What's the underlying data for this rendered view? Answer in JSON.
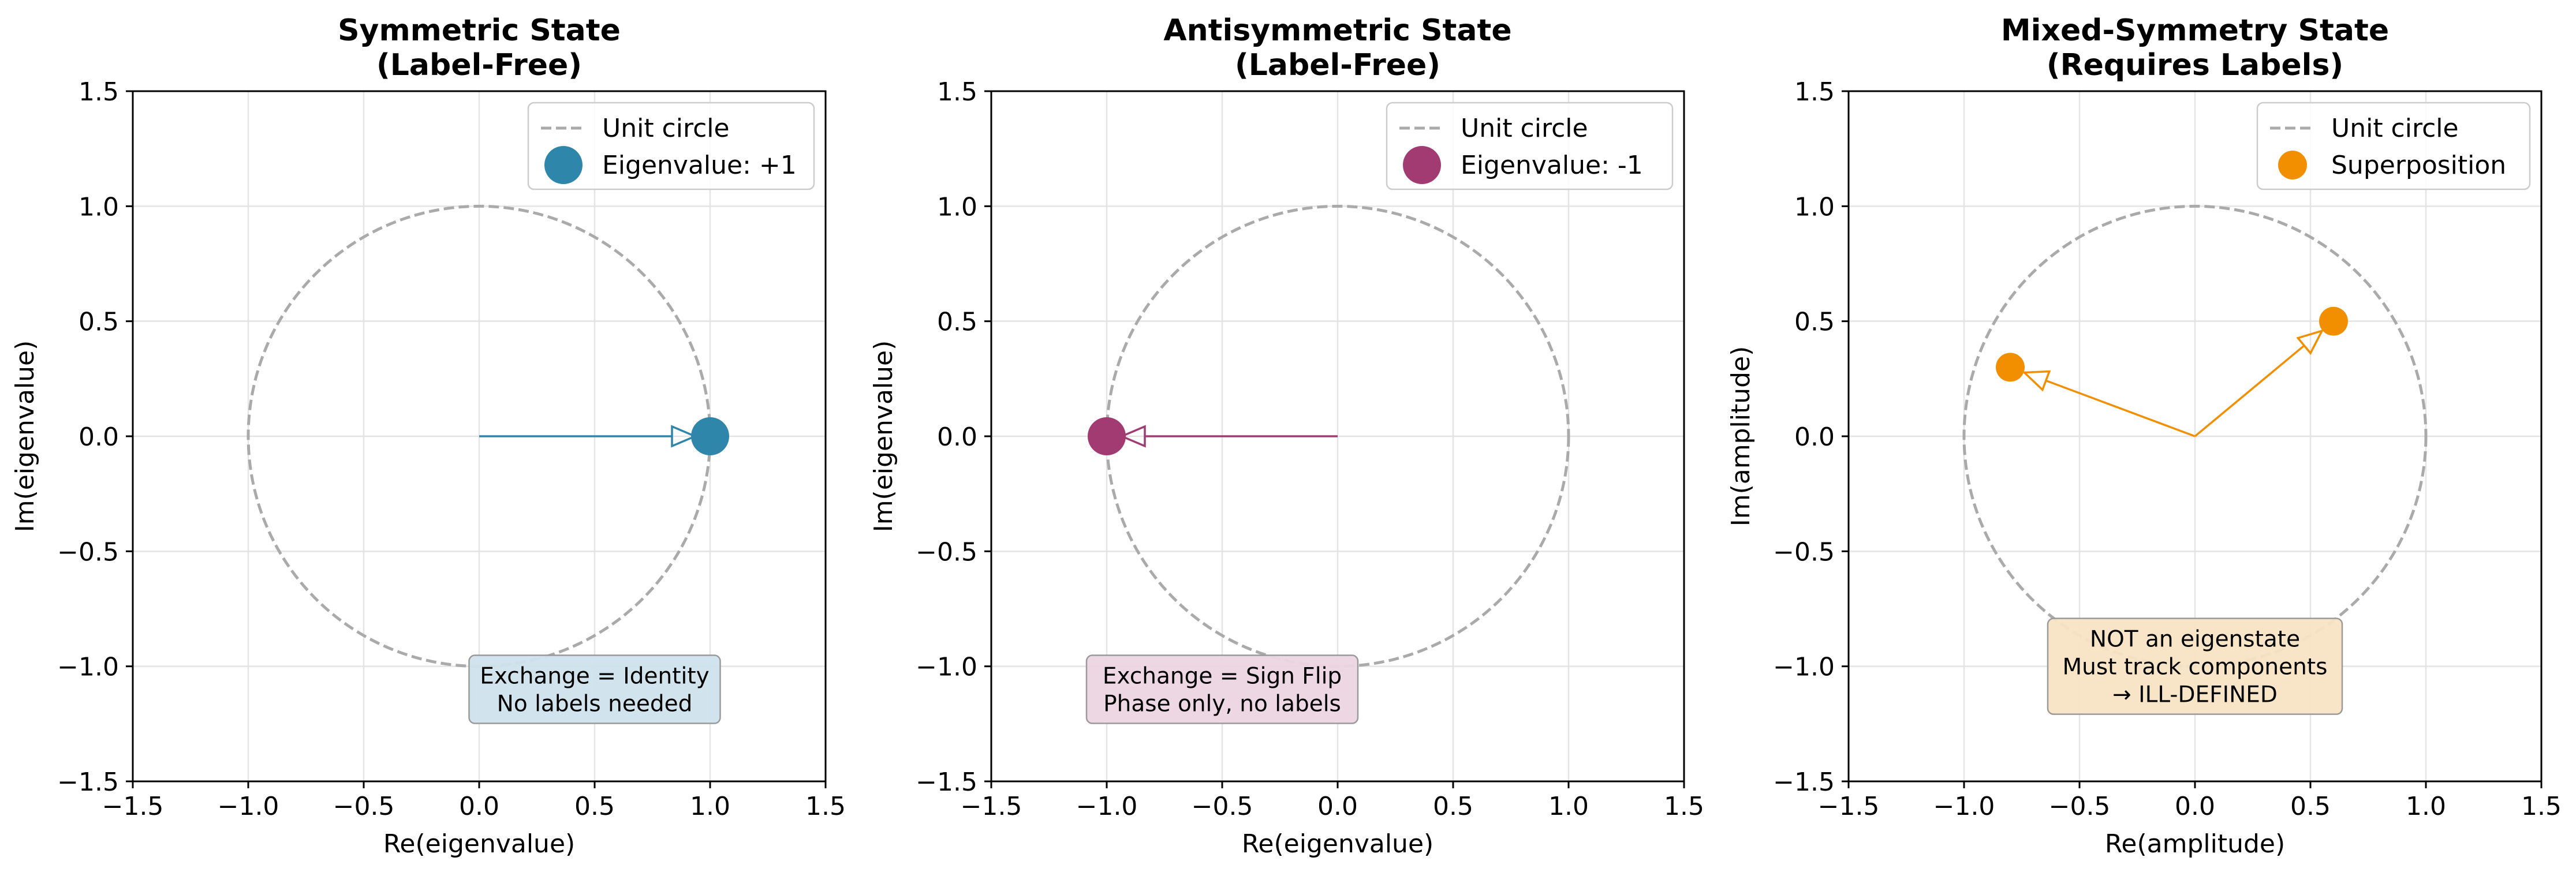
{
  "chart_data": [
    {
      "type": "scatter",
      "title": [
        "Symmetric State",
        "(Label-Free)"
      ],
      "xlabel": "Re(eigenvalue)",
      "ylabel": "Im(eigenvalue)",
      "xlim": [
        -1.5,
        1.5
      ],
      "ylim": [
        -1.5,
        1.5
      ],
      "ticks": [
        "−1.5",
        "−1.0",
        "−0.5",
        "0.0",
        "0.5",
        "1.0",
        "1.5"
      ],
      "tick_values": [
        -1.5,
        -1.0,
        -0.5,
        0.0,
        0.5,
        1.0,
        1.5
      ],
      "grid": true,
      "unit_circle": {
        "name": "Unit circle",
        "color": "#aaaaaa"
      },
      "series": [
        {
          "name": "Eigenvalue: +1",
          "color": "#2e86ab",
          "points": [
            [
              1.0,
              0.0
            ]
          ],
          "arrows": [
            {
              "from": [
                0.0,
                0.0
              ],
              "to": [
                1.0,
                0.0
              ]
            }
          ]
        }
      ],
      "legend": "top-right",
      "annotation": {
        "lines": [
          "Exchange = Identity",
          "No labels needed"
        ],
        "bg": "#cfe2ec",
        "x": 0.5,
        "y": -1.1
      }
    },
    {
      "type": "scatter",
      "title": [
        "Antisymmetric State",
        "(Label-Free)"
      ],
      "xlabel": "Re(eigenvalue)",
      "ylabel": "Im(eigenvalue)",
      "xlim": [
        -1.5,
        1.5
      ],
      "ylim": [
        -1.5,
        1.5
      ],
      "ticks": [
        "−1.5",
        "−1.0",
        "−0.5",
        "0.0",
        "0.5",
        "1.0",
        "1.5"
      ],
      "tick_values": [
        -1.5,
        -1.0,
        -0.5,
        0.0,
        0.5,
        1.0,
        1.5
      ],
      "grid": true,
      "unit_circle": {
        "name": "Unit circle",
        "color": "#aaaaaa"
      },
      "series": [
        {
          "name": "Eigenvalue: -1",
          "color": "#a23b72",
          "points": [
            [
              -1.0,
              0.0
            ]
          ],
          "arrows": [
            {
              "from": [
                0.0,
                0.0
              ],
              "to": [
                -1.0,
                0.0
              ]
            }
          ]
        }
      ],
      "legend": "top-right",
      "annotation": {
        "lines": [
          "Exchange = Sign Flip",
          "Phase only, no labels"
        ],
        "bg": "#ecd5e1",
        "x": -0.5,
        "y": -1.1
      }
    },
    {
      "type": "scatter",
      "title": [
        "Mixed-Symmetry State",
        "(Requires Labels)"
      ],
      "xlabel": "Re(amplitude)",
      "ylabel": "Im(amplitude)",
      "xlim": [
        -1.5,
        1.5
      ],
      "ylim": [
        -1.5,
        1.5
      ],
      "ticks": [
        "−1.5",
        "−1.0",
        "−0.5",
        "0.0",
        "0.5",
        "1.0",
        "1.5"
      ],
      "tick_values": [
        -1.5,
        -1.0,
        -0.5,
        0.0,
        0.5,
        1.0,
        1.5
      ],
      "grid": true,
      "unit_circle": {
        "name": "Unit circle",
        "color": "#aaaaaa"
      },
      "series": [
        {
          "name": "Superposition",
          "color": "#f18f01",
          "points": [
            [
              0.6,
              0.5
            ],
            [
              -0.8,
              0.3
            ]
          ],
          "arrows": [
            {
              "from": [
                0.0,
                0.0
              ],
              "to": [
                0.6,
                0.5
              ]
            },
            {
              "from": [
                0.0,
                0.0
              ],
              "to": [
                -0.8,
                0.3
              ]
            }
          ]
        }
      ],
      "legend": "top-right",
      "annotation": {
        "lines": [
          "NOT an eigenstate",
          "Must track components",
          "→ ILL-DEFINED"
        ],
        "bg": "#f8e3c3",
        "x": 0.0,
        "y": -1.0
      }
    }
  ]
}
